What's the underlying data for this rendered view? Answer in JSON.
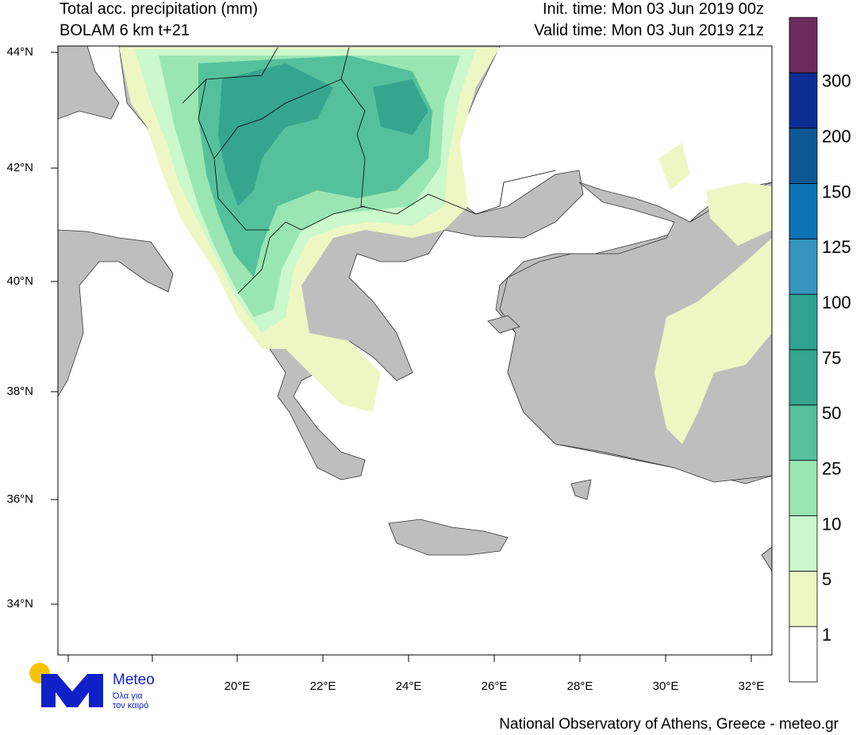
{
  "header": {
    "title": "Total acc. precipitation (mm)",
    "model": "BOLAM 6 km t+21",
    "init_time": "Init. time: Mon 03 Jun 2019 00z",
    "valid_time": "Valid time: Mon 03 Jun 2019 21z"
  },
  "map": {
    "lat_labels": [
      "44°N",
      "42°N",
      "40°N",
      "38°N",
      "36°N",
      "34°N"
    ],
    "lon_labels": [
      "20°E",
      "22°E",
      "24°E",
      "26°E",
      "28°E",
      "30°E",
      "32°E"
    ]
  },
  "colorbar": {
    "levels": [
      {
        "label": "1",
        "color": "#ffffff"
      },
      {
        "label": "5",
        "color": "#eef7c4"
      },
      {
        "label": "10",
        "color": "#cbf8cc"
      },
      {
        "label": "25",
        "color": "#9ae6b2"
      },
      {
        "label": "50",
        "color": "#55c09c"
      },
      {
        "label": "75",
        "color": "#35a58e"
      },
      {
        "label": "100",
        "color": "#2fa394"
      },
      {
        "label": "125",
        "color": "#3595be"
      },
      {
        "label": "150",
        "color": "#0b72b5"
      },
      {
        "label": "200",
        "color": "#0d5795"
      },
      {
        "label": "300",
        "color": "#0e2d94"
      }
    ],
    "top_color": "#6b2c5d"
  },
  "logo": {
    "name": "Meteo",
    "tagline_1": "Όλα για",
    "tagline_2": "τον καιρό"
  },
  "footer": "National Observatory of Athens, Greece - meteo.gr"
}
